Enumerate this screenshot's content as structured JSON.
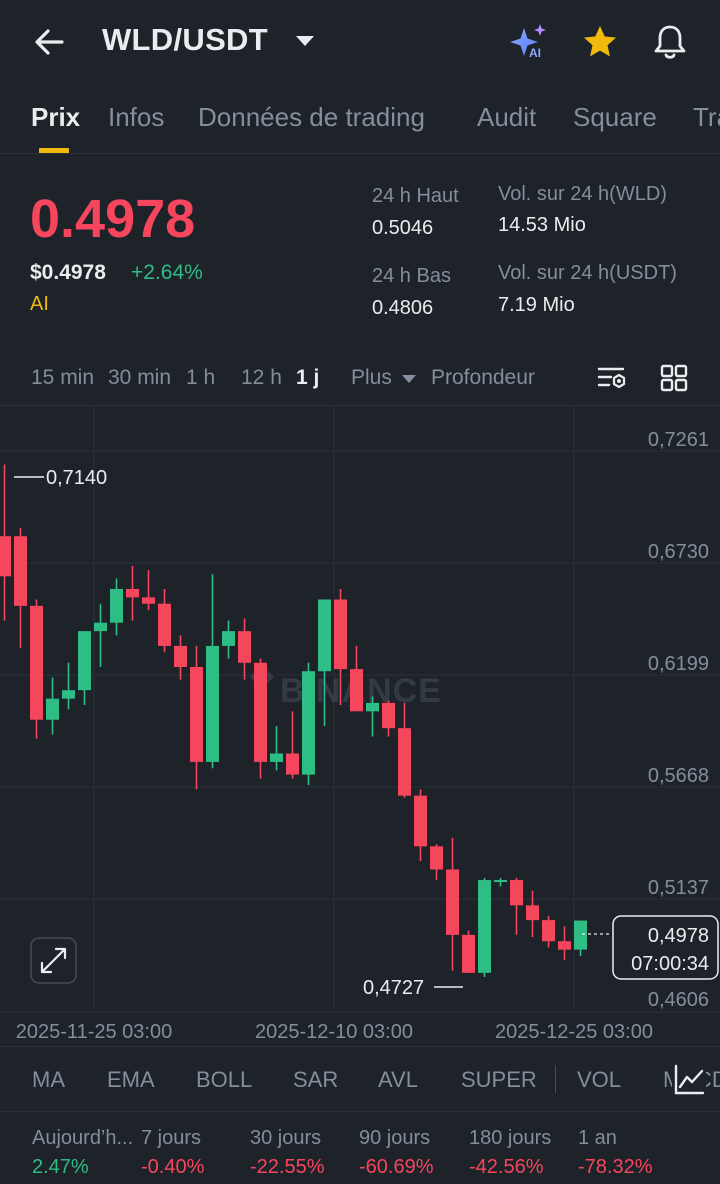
{
  "header": {
    "pair": "WLD/USDT",
    "icons": [
      "back-arrow-icon",
      "ai-sparkle-icon",
      "star-icon",
      "bell-icon"
    ],
    "ai_badge": "AI"
  },
  "tabs": [
    "Prix",
    "Infos",
    "Données de trading",
    "Audit",
    "Square",
    "Trading"
  ],
  "price": {
    "last": "0.4978",
    "fiat": "$0.4978",
    "change": "+2.64%",
    "tag": "AI"
  },
  "stats": {
    "high_label": "24 h Haut",
    "high_value": "0.5046",
    "low_label": "24 h Bas",
    "low_value": "0.4806",
    "vol_base_label": "Vol. sur 24 h(WLD)",
    "vol_base_value": "14.53 Mio",
    "vol_quote_label": "Vol. sur 24 h(USDT)",
    "vol_quote_value": "7.19 Mio"
  },
  "intervals": {
    "m15": "15 min",
    "m30": "30 min",
    "h1": "1 h",
    "h12": "12 h",
    "d1": "1 j",
    "more": "Plus",
    "depth": "Profondeur"
  },
  "chart": {
    "watermark": "BINANCE",
    "max_label": "0,7140",
    "min_label": "0,4727",
    "current_price": "0,4978",
    "countdown": "07:00:34"
  },
  "chart_data": {
    "type": "candlestick",
    "y_ticks": [
      "0,7261",
      "0,6730",
      "0,6199",
      "0,5668",
      "0,5137",
      "0,4606"
    ],
    "x_ticks": [
      "2025-11-25 03:00",
      "2025-12-10 03:00",
      "2025-12-25 03:00"
    ],
    "ylim": [
      0.4606,
      0.7261
    ],
    "max": 0.714,
    "min": 0.4727,
    "last": 0.4978,
    "up_color": "#2ebd85",
    "down_color": "#f6465d",
    "candles": [
      [
        0.661,
        0.714,
        0.64,
        0.68,
        "down"
      ],
      [
        0.68,
        0.684,
        0.627,
        0.647,
        "down"
      ],
      [
        0.647,
        0.65,
        0.584,
        0.593,
        "down"
      ],
      [
        0.593,
        0.613,
        0.586,
        0.603,
        "up"
      ],
      [
        0.603,
        0.62,
        0.598,
        0.607,
        "up"
      ],
      [
        0.607,
        0.633,
        0.6,
        0.635,
        "up"
      ],
      [
        0.635,
        0.648,
        0.618,
        0.639,
        "up"
      ],
      [
        0.639,
        0.66,
        0.633,
        0.655,
        "up"
      ],
      [
        0.655,
        0.666,
        0.64,
        0.651,
        "down"
      ],
      [
        0.651,
        0.664,
        0.645,
        0.648,
        "down"
      ],
      [
        0.648,
        0.655,
        0.625,
        0.628,
        "down"
      ],
      [
        0.628,
        0.633,
        0.612,
        0.618,
        "down"
      ],
      [
        0.618,
        0.628,
        0.56,
        0.573,
        "down"
      ],
      [
        0.573,
        0.662,
        0.57,
        0.628,
        "up"
      ],
      [
        0.628,
        0.64,
        0.622,
        0.635,
        "up"
      ],
      [
        0.635,
        0.641,
        0.612,
        0.62,
        "down"
      ],
      [
        0.62,
        0.622,
        0.565,
        0.573,
        "down"
      ],
      [
        0.573,
        0.59,
        0.569,
        0.577,
        "up"
      ],
      [
        0.577,
        0.597,
        0.565,
        0.567,
        "down"
      ],
      [
        0.567,
        0.62,
        0.562,
        0.616,
        "up"
      ],
      [
        0.616,
        0.65,
        0.59,
        0.65,
        "up"
      ],
      [
        0.65,
        0.655,
        0.6,
        0.617,
        "down"
      ],
      [
        0.617,
        0.628,
        0.598,
        0.597,
        "down"
      ],
      [
        0.597,
        0.604,
        0.585,
        0.601,
        "up"
      ],
      [
        0.601,
        0.602,
        0.585,
        0.589,
        "down"
      ],
      [
        0.589,
        0.601,
        0.556,
        0.557,
        "down"
      ],
      [
        0.557,
        0.56,
        0.526,
        0.533,
        "down"
      ],
      [
        0.533,
        0.534,
        0.517,
        0.522,
        "down"
      ],
      [
        0.522,
        0.537,
        0.474,
        0.491,
        "down"
      ],
      [
        0.491,
        0.493,
        0.473,
        0.473,
        "down"
      ],
      [
        0.473,
        0.518,
        0.471,
        0.517,
        "up"
      ],
      [
        0.517,
        0.518,
        0.514,
        0.517,
        "up"
      ],
      [
        0.517,
        0.518,
        0.491,
        0.505,
        "down"
      ],
      [
        0.505,
        0.512,
        0.49,
        0.498,
        "down"
      ],
      [
        0.498,
        0.5,
        0.485,
        0.488,
        "down"
      ],
      [
        0.488,
        0.495,
        0.479,
        0.484,
        "down"
      ],
      [
        0.484,
        0.497,
        0.481,
        0.4978,
        "up"
      ]
    ]
  },
  "indicators": [
    "MA",
    "EMA",
    "BOLL",
    "SAR",
    "AVL",
    "SUPER",
    "VOL",
    "MACD"
  ],
  "performance": [
    {
      "label": "Aujourd’h...",
      "value": "2.47%",
      "color": "#2ebd85"
    },
    {
      "label": "7 jours",
      "value": "-0.40%",
      "color": "#f6465d"
    },
    {
      "label": "30 jours",
      "value": "-22.55%",
      "color": "#f6465d"
    },
    {
      "label": "90 jours",
      "value": "-60.69%",
      "color": "#f6465d"
    },
    {
      "label": "180 jours",
      "value": "-42.56%",
      "color": "#f6465d"
    },
    {
      "label": "1 an",
      "value": "-78.32%",
      "color": "#f6465d"
    }
  ]
}
